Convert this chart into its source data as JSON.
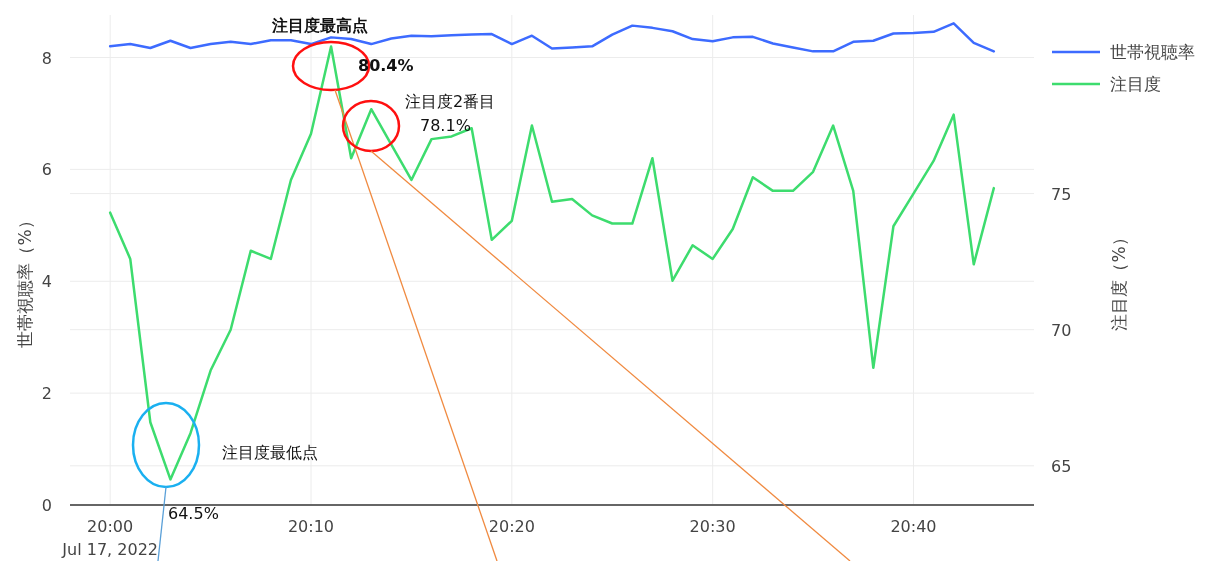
{
  "chart_data": {
    "type": "line",
    "xlabel": null,
    "ylabel": "世帯視聴率（%）",
    "y2label": "注目度（%）",
    "x": [
      "2022-07-17T20:00",
      "2022-07-17T20:01",
      "2022-07-17T20:02",
      "2022-07-17T20:03",
      "2022-07-17T20:04",
      "2022-07-17T20:05",
      "2022-07-17T20:06",
      "2022-07-17T20:07",
      "2022-07-17T20:08",
      "2022-07-17T20:09",
      "2022-07-17T20:10",
      "2022-07-17T20:11",
      "2022-07-17T20:12",
      "2022-07-17T20:13",
      "2022-07-17T20:14",
      "2022-07-17T20:15",
      "2022-07-17T20:16",
      "2022-07-17T20:17",
      "2022-07-17T20:18",
      "2022-07-17T20:19",
      "2022-07-17T20:20",
      "2022-07-17T20:21",
      "2022-07-17T20:22",
      "2022-07-17T20:23",
      "2022-07-17T20:24",
      "2022-07-17T20:25",
      "2022-07-17T20:26",
      "2022-07-17T20:27",
      "2022-07-17T20:28",
      "2022-07-17T20:29",
      "2022-07-17T20:30",
      "2022-07-17T20:31",
      "2022-07-17T20:32",
      "2022-07-17T20:33",
      "2022-07-17T20:34",
      "2022-07-17T20:35",
      "2022-07-17T20:36",
      "2022-07-17T20:37",
      "2022-07-17T20:38",
      "2022-07-17T20:39",
      "2022-07-17T20:40",
      "2022-07-17T20:41",
      "2022-07-17T20:42",
      "2022-07-17T20:43",
      "2022-07-17T20:44"
    ],
    "series": [
      {
        "name": "世帯視聴率",
        "color": "#3d6bff",
        "values": [
          8.2,
          8.24,
          8.17,
          8.3,
          8.17,
          8.24,
          8.28,
          8.24,
          8.31,
          8.31,
          8.24,
          8.36,
          8.33,
          8.24,
          8.34,
          8.39,
          8.38,
          8.4,
          8.41,
          8.42,
          8.24,
          8.39,
          8.16,
          8.18,
          8.2,
          8.41,
          8.57,
          8.53,
          8.47,
          8.33,
          8.29,
          8.36,
          8.37,
          8.25,
          8.18,
          8.11,
          8.11,
          8.28,
          8.3,
          8.43,
          8.44,
          8.46,
          8.61,
          8.26,
          8.11
        ]
      },
      {
        "name": "注目度",
        "color": "#3ddc6e",
        "axis": "y2",
        "values": [
          74.3,
          72.6,
          66.6,
          64.5,
          66.2,
          68.5,
          70.0,
          72.9,
          72.6,
          75.5,
          77.2,
          80.4,
          76.3,
          78.1,
          76.8,
          75.5,
          77.0,
          77.1,
          77.4,
          73.3,
          74.0,
          77.5,
          74.7,
          74.8,
          74.2,
          73.9,
          73.9,
          76.3,
          71.8,
          73.1,
          72.6,
          73.7,
          75.6,
          75.1,
          75.1,
          75.8,
          77.5,
          75.1,
          68.6,
          73.8,
          75.0,
          76.2,
          77.9,
          72.4,
          75.2
        ]
      }
    ],
    "xlim": [
      "2022-07-17T19:58",
      "2022-07-17T20:46"
    ],
    "xticks": [
      {
        "value": "2022-07-17T20:00",
        "label": "20:00\nJul 17, 2022"
      },
      {
        "value": "2022-07-17T20:10",
        "label": "20:10"
      },
      {
        "value": "2022-07-17T20:20",
        "label": "20:20"
      },
      {
        "value": "2022-07-17T20:30",
        "label": "20:30"
      },
      {
        "value": "2022-07-17T20:40",
        "label": "20:40"
      }
    ],
    "ylim": [
      0,
      8.76
    ],
    "yticks": [
      0,
      2,
      4,
      6,
      8
    ],
    "y2lim": [
      63.56,
      81.56
    ],
    "y2ticks": [
      65,
      70,
      75
    ],
    "grid": true,
    "legend": "top right",
    "line_style": "solid",
    "marker": "none",
    "annotations": [
      "注目度最高点",
      "80.4%",
      "注目度2番目",
      "78.1%",
      "注目度最低点",
      "64.5%"
    ]
  }
}
